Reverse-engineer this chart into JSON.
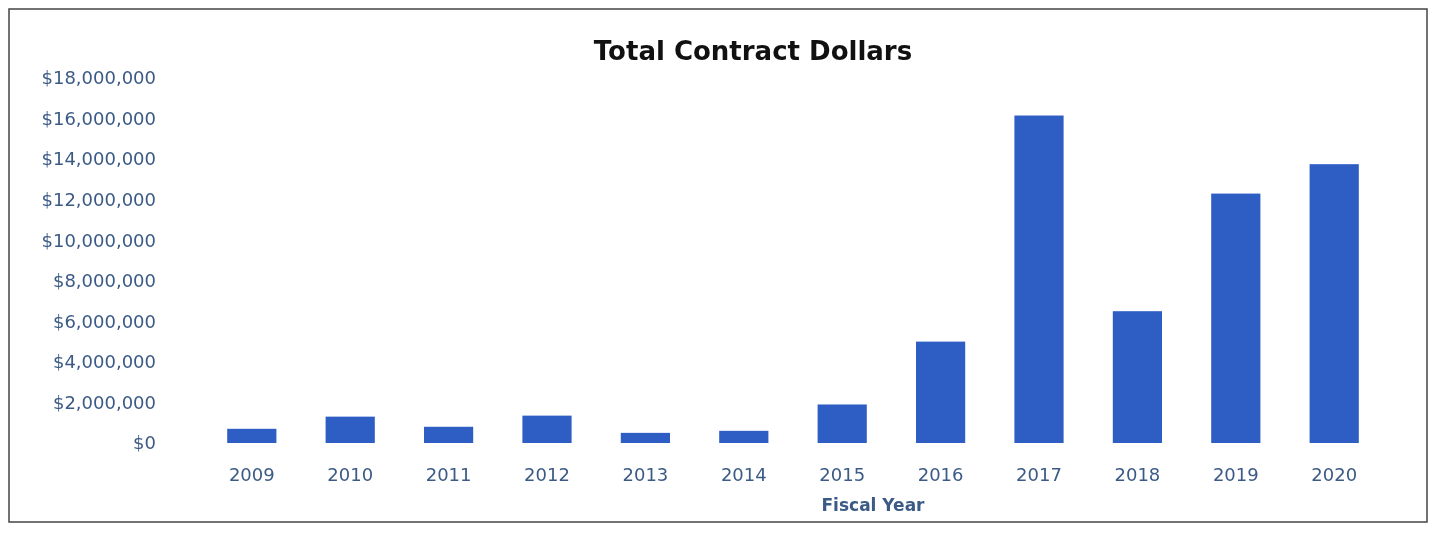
{
  "chart_data": {
    "type": "bar",
    "title": "Total Contract Dollars",
    "xlabel": "Fiscal Year",
    "categories": [
      "2009",
      "2010",
      "2011",
      "2012",
      "2013",
      "2014",
      "2015",
      "2016",
      "2017",
      "2018",
      "2019",
      "2020"
    ],
    "values": [
      700000,
      1300000,
      800000,
      1350000,
      500000,
      600000,
      1900000,
      5000000,
      16150000,
      6500000,
      12300000,
      13750000
    ],
    "color": "#2e5ec4",
    "ylim": [
      0,
      18000000
    ],
    "yticks": [
      {
        "value": 0,
        "label": "$0"
      },
      {
        "value": 2000000,
        "label": "$2,000,000"
      },
      {
        "value": 4000000,
        "label": "$4,000,000"
      },
      {
        "value": 6000000,
        "label": "$6,000,000"
      },
      {
        "value": 8000000,
        "label": "$8,000,000"
      },
      {
        "value": 10000000,
        "label": "$10,000,000"
      },
      {
        "value": 12000000,
        "label": "$12,000,000"
      },
      {
        "value": 14000000,
        "label": "$14,000,000"
      },
      {
        "value": 16000000,
        "label": "$16,000,000"
      },
      {
        "value": 18000000,
        "label": "$18,000,000"
      }
    ],
    "grid": false
  }
}
